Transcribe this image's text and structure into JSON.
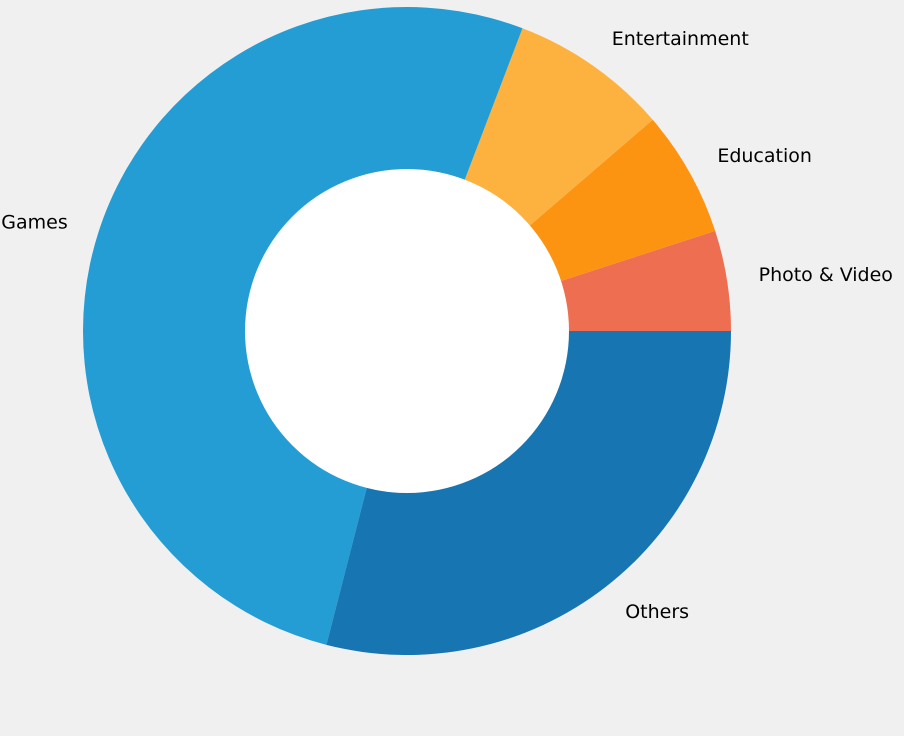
{
  "chart_data": {
    "type": "pie",
    "variant": "donut",
    "categories": [
      "Photo & Video",
      "Education",
      "Entertainment",
      "Games",
      "Others"
    ],
    "values": [
      5.0,
      6.3,
      7.9,
      51.8,
      29.0
    ],
    "colors": [
      "#ee6e52",
      "#fc9412",
      "#fdb23f",
      "#239dd4",
      "#1775b1"
    ],
    "start_angle_deg": 0,
    "direction": "counterclockwise",
    "legend": "none",
    "grid": false,
    "title": ""
  },
  "colors": {
    "background": "#f0f0f0",
    "hole": "#ffffff"
  }
}
